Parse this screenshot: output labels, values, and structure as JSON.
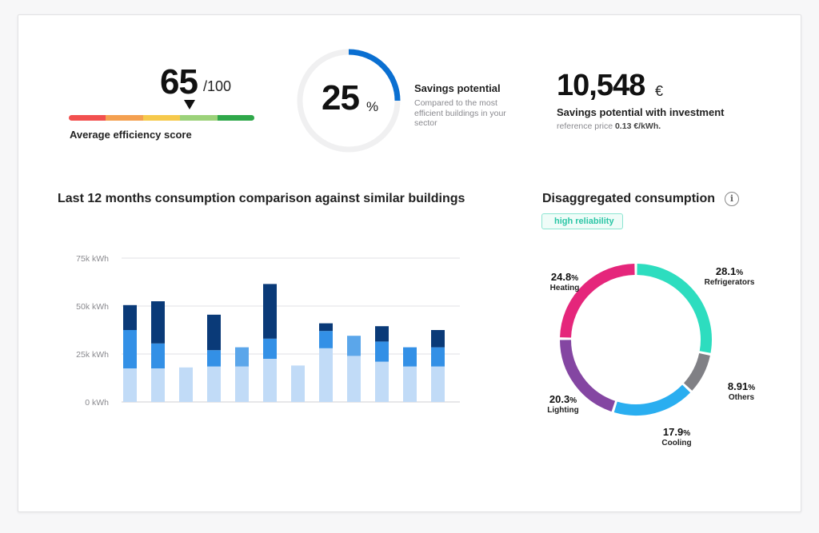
{
  "efficiency": {
    "score": "65",
    "max": "/100",
    "label": "Average efficiency score",
    "level": 65,
    "bar_colors": [
      "#f2504f",
      "#f4a050",
      "#f6c94c",
      "#9cd27a",
      "#2fa84a"
    ]
  },
  "savings": {
    "value": "25",
    "unit": "%",
    "fraction": 0.25,
    "title": "Savings potential",
    "description": "Compared to the most efficient buildings in your sector",
    "ring_color": "#0a6fd1",
    "track_color": "#f0f0f1"
  },
  "investment": {
    "value": "10,548",
    "currency": "€",
    "title": "Savings potential with investment",
    "ref_text": "reference price",
    "ref_price": "0.13 €/kWh."
  },
  "consumption_chart": {
    "title": "Last 12 months consumption comparison against similar buildings"
  },
  "disaggregated": {
    "title": "Disaggregated consumption",
    "info_icon": "info-icon",
    "reliability_badge": "high reliability"
  },
  "chart_data": [
    {
      "type": "bar",
      "stacked": true,
      "title": "Last 12 months consumption comparison against similar buildings",
      "ylim": [
        0,
        75000
      ],
      "yticks": [
        0,
        25000,
        50000,
        75000
      ],
      "ytick_labels": [
        "0 kWh",
        "25k kWh",
        "50k kWh",
        "75k kWh"
      ],
      "grid": true,
      "categories": [
        "",
        "",
        "",
        "",
        "",
        "",
        "",
        "",
        "",
        "",
        "",
        ""
      ],
      "series": [
        {
          "color": "#c1dbf7",
          "values": [
            17500,
            17500,
            18000,
            18500,
            18500,
            22500,
            19000,
            28000,
            24000,
            21000,
            18500,
            18500
          ]
        },
        {
          "color": "#3390e6",
          "values": [
            20000,
            13000,
            0,
            8500,
            10000,
            10500,
            0,
            9000,
            10500,
            10500,
            10000,
            10000
          ]
        },
        {
          "color": "#0a3a78",
          "values": [
            13000,
            22000,
            0,
            18500,
            0,
            28500,
            0,
            4000,
            0,
            8000,
            0,
            9000
          ]
        }
      ],
      "segment_overrides": [
        {
          "bar": 4,
          "series": 1,
          "color": "#5ba6ea"
        },
        {
          "bar": 8,
          "series": 1,
          "color": "#5ba6ea"
        }
      ]
    },
    {
      "type": "pie",
      "donut": true,
      "title": "Disaggregated consumption",
      "slices": [
        {
          "label": "Refrigerators",
          "value": 28.1,
          "display": "28.1",
          "color": "#2dddbf"
        },
        {
          "label": "Others",
          "value": 8.91,
          "display": "8.91",
          "color": "#808085"
        },
        {
          "label": "Cooling",
          "value": 17.9,
          "display": "17.9",
          "color": "#2aaef0"
        },
        {
          "label": "Lighting",
          "value": 20.3,
          "display": "20.3",
          "color": "#8446a2"
        },
        {
          "label": "Heating",
          "value": 24.8,
          "display": "24.8",
          "color": "#e5267b"
        }
      ],
      "unit": "%"
    }
  ]
}
